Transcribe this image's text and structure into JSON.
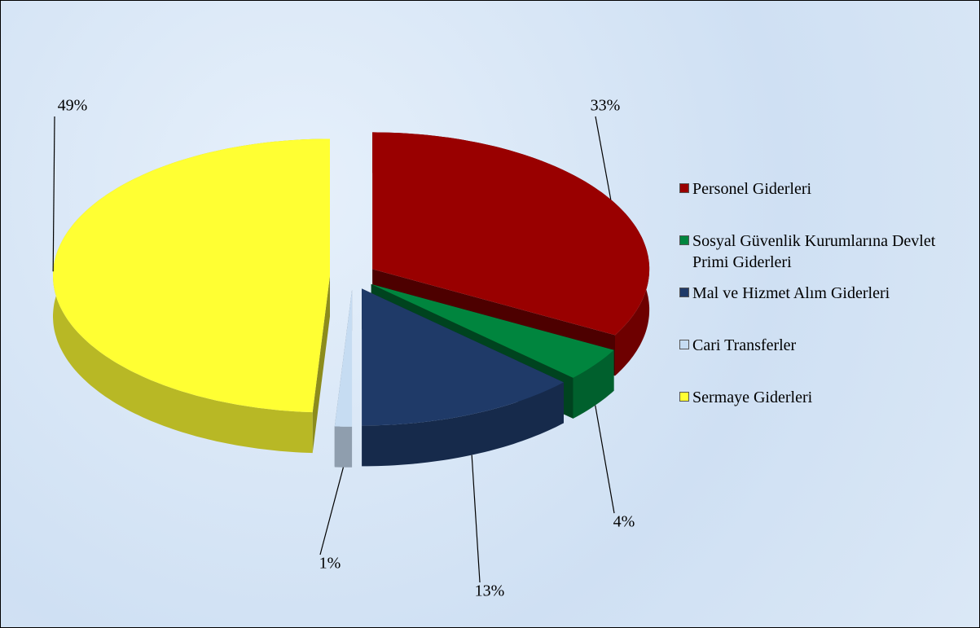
{
  "chart_data": {
    "type": "pie3d",
    "categories": [
      "Personel Giderleri",
      "Sosyal Güvenlik Kurumlarına Devlet Primi Giderleri",
      "Mal ve Hizmet Alım Giderleri",
      "Cari Transferler",
      "Sermaye Giderleri"
    ],
    "values": [
      33,
      4,
      13,
      1,
      49
    ],
    "value_labels": [
      "33%",
      "4%",
      "13%",
      "1%",
      "49%"
    ],
    "colors": [
      "#990000",
      "#00853e",
      "#1f3a68",
      "#c6dcf2",
      "#ffff33"
    ],
    "legend": "right"
  }
}
